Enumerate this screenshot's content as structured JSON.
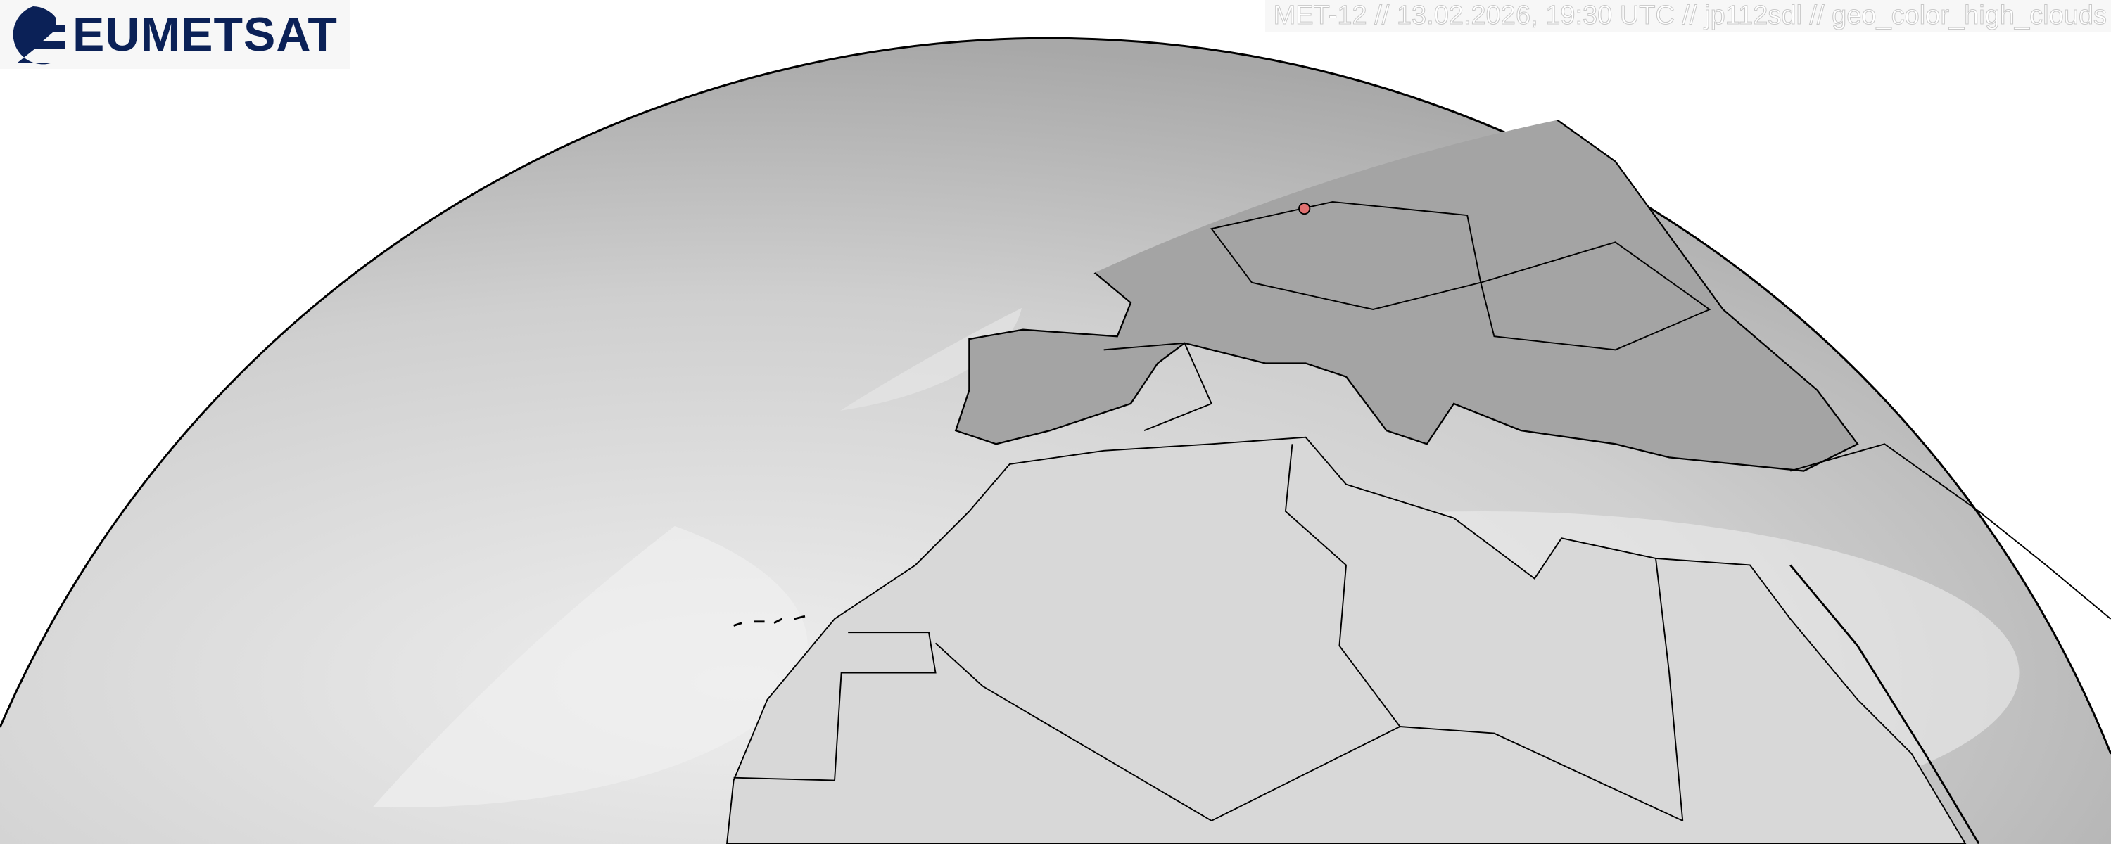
{
  "logo": {
    "text": "EUMETSAT",
    "color": "#0b2157"
  },
  "caption": {
    "text": "MET-12 // 13.02.2026, 19:30 UTC // jp112sdl // geo_color_high_clouds"
  },
  "map": {
    "type": "geostationary full-disk satellite image (northern limb, Europe / North Africa / Atlantic)",
    "marker_color": "#e07070",
    "land_color": "#9a9a9a",
    "cloud_color": "#e8e8e8",
    "border_color": "#000000"
  }
}
